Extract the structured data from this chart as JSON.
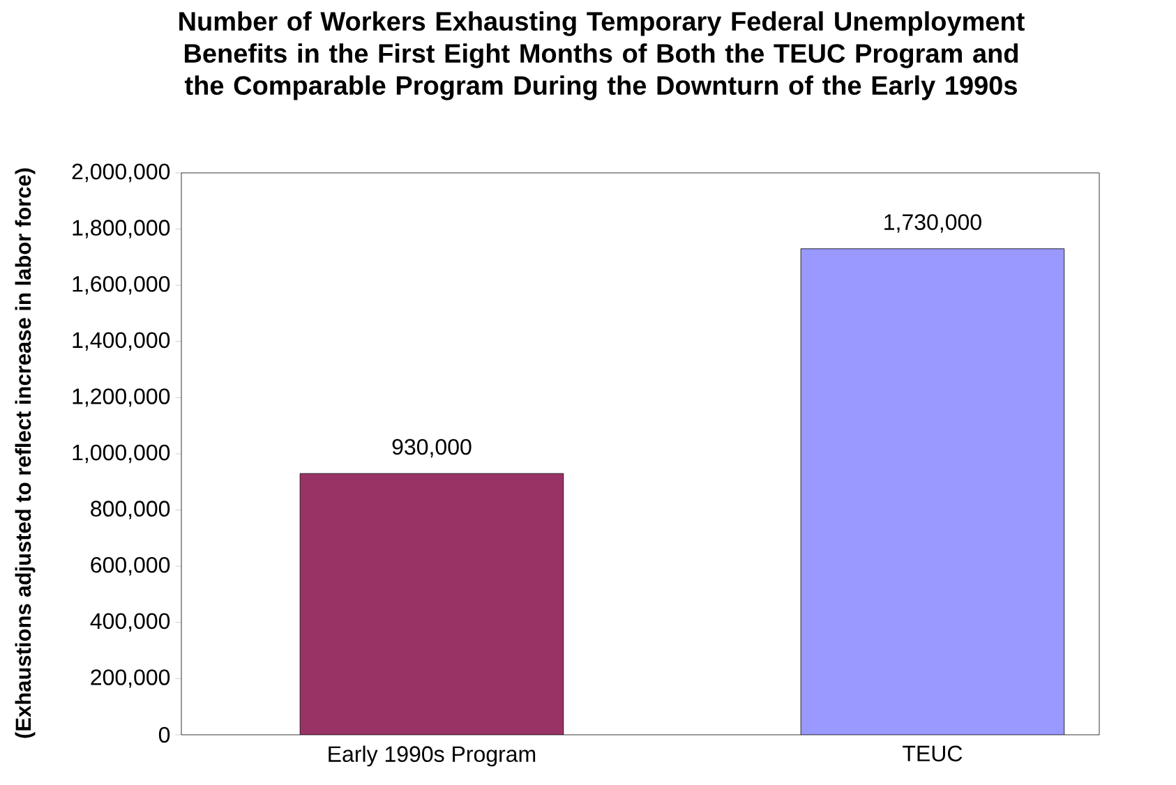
{
  "chart_data": {
    "type": "bar",
    "title": "Number of Workers Exhausting Temporary Federal Unemployment Benefits in the First Eight Months of Both the TEUC Program and the Comparable Program During the Downturn of the Early 1990s",
    "ylabel": "(Exhaustions adjusted to reflect increase in labor force)",
    "categories": [
      "Early 1990s Program",
      "TEUC"
    ],
    "values": [
      930000,
      1730000
    ],
    "colors": [
      "#993366",
      "#9999ff"
    ],
    "ylim": [
      0,
      2000000
    ],
    "yticks": [
      {
        "value": 0,
        "label": "0"
      },
      {
        "value": 200000,
        "label": "200,000"
      },
      {
        "value": 400000,
        "label": "400,000"
      },
      {
        "value": 600000,
        "label": "600,000"
      },
      {
        "value": 800000,
        "label": "800,000"
      },
      {
        "value": 1000000,
        "label": "1,000,000"
      },
      {
        "value": 1200000,
        "label": "1,200,000"
      },
      {
        "value": 1400000,
        "label": "1,400,000"
      },
      {
        "value": 1600000,
        "label": "1,600,000"
      },
      {
        "value": 1800000,
        "label": "1,800,000"
      },
      {
        "value": 2000000,
        "label": "2,000,000"
      }
    ],
    "value_labels": [
      "930,000",
      "1,730,000"
    ]
  }
}
